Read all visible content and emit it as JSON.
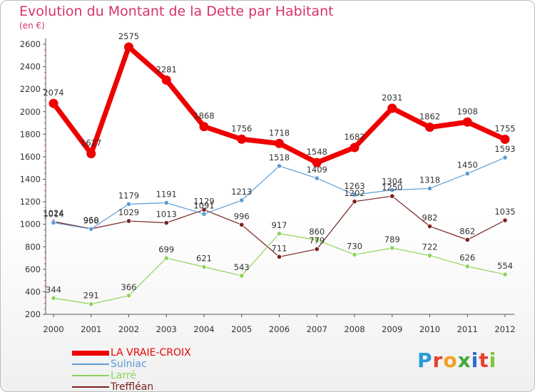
{
  "chart_data": {
    "type": "line",
    "title": "Evolution du Montant de la Dette par Habitant",
    "subtitle": "(en €)",
    "x": [
      "2000",
      "2001",
      "2002",
      "2003",
      "2004",
      "2005",
      "2006",
      "2007",
      "2008",
      "2009",
      "2010",
      "2011",
      "2012"
    ],
    "ylim": [
      200,
      2600
    ],
    "yticks": [
      200,
      400,
      600,
      800,
      1000,
      1200,
      1400,
      1600,
      1800,
      2000,
      2200,
      2400,
      2600
    ],
    "grid": false,
    "legend_position": "bottom-left",
    "series": [
      {
        "name": "LA VRAIE-CROIX",
        "color": "#ee0000",
        "values": [
          2074,
          1627,
          2575,
          2281,
          1868,
          1756,
          1718,
          1548,
          1682,
          2031,
          1862,
          1908,
          1755
        ]
      },
      {
        "name": "Sulniac",
        "color": "#5b9bd5",
        "values": [
          1014,
          958,
          1179,
          1191,
          1091,
          1213,
          1518,
          1409,
          1263,
          1304,
          1318,
          1450,
          1593
        ]
      },
      {
        "name": "Larré",
        "color": "#8fd45a",
        "values": [
          344,
          291,
          366,
          699,
          621,
          543,
          917,
          860,
          730,
          789,
          722,
          626,
          554
        ]
      },
      {
        "name": "Treffléan",
        "color": "#7a2020",
        "values": [
          1024,
          960,
          1029,
          1013,
          1129,
          996,
          711,
          779,
          1202,
          1250,
          982,
          862,
          1035
        ]
      }
    ]
  },
  "logo_text": "Proxiti"
}
